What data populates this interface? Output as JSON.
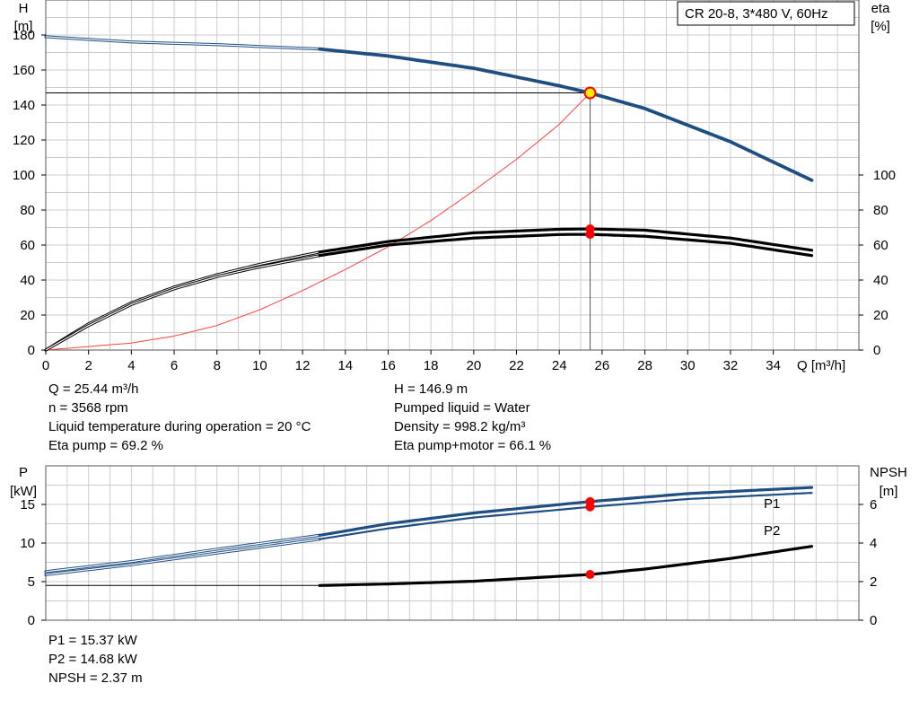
{
  "legend_box": "CR 20-8, 3*480 V, 60Hz",
  "axes": {
    "h_unit_line1": "H",
    "h_unit_line2": "[m]",
    "eta_unit_line1": "eta",
    "eta_unit_line2": "[%]",
    "q_label": "Q [m³/h]",
    "p_unit_line1": "P",
    "p_unit_line2": "[kW]",
    "npsh_unit_line1": "NPSH",
    "npsh_unit_line2": "[m]"
  },
  "info_top_left": [
    "Q = 25.44 m³/h",
    "n = 3568 rpm",
    "Liquid temperature during operation = 20 °C",
    "Eta pump = 69.2 %"
  ],
  "info_top_right": [
    "H = 146.9 m",
    "Pumped liquid = Water",
    "Density = 998.2 kg/m³",
    "Eta pump+motor = 66.1 %"
  ],
  "info_bottom": [
    "P1 = 15.37 kW",
    "P2 = 14.68 kW",
    "NPSH = 2.37 m"
  ],
  "colors": {
    "head": "#1f4e82",
    "power": "#1f4e82",
    "efficiency": "#000000",
    "system": "#ff4040",
    "marker": "#ff0000",
    "duty_point": "#ffee00",
    "grid": "#cccccc"
  },
  "chart_data": [
    {
      "type": "line",
      "x_ticks": [
        0,
        2,
        4,
        6,
        8,
        10,
        12,
        14,
        16,
        18,
        20,
        22,
        24,
        26,
        28,
        30,
        32,
        34
      ],
      "xlim": [
        0,
        38
      ],
      "ylim": [
        0,
        200
      ],
      "y_ticks": [
        0,
        20,
        40,
        60,
        80,
        100,
        120,
        140,
        160,
        180
      ],
      "y2_ticks": [
        0,
        20,
        40,
        60,
        80,
        100
      ],
      "xlabel": "Q [m³/h]",
      "ylabel": "H [m]",
      "y2label": "eta [%]",
      "grid": true,
      "duty_point": {
        "Q": 25.44,
        "H": 146.9,
        "eta_pump": 69.2,
        "eta_total": 66.1
      },
      "series": [
        {
          "key": "head",
          "x": [
            0,
            4,
            8,
            12.8,
            16,
            20,
            24,
            25.44,
            28,
            32,
            35.8
          ],
          "y": [
            179,
            176,
            174.5,
            172,
            168,
            161,
            151,
            146.9,
            138,
            119,
            97
          ]
        },
        {
          "key": "eta_pump",
          "x": [
            0,
            2,
            4,
            6,
            8,
            10,
            12.8,
            16,
            20,
            24,
            25.44,
            28,
            32,
            35.8
          ],
          "y": [
            0,
            15,
            27,
            36,
            43,
            49,
            56,
            62,
            67,
            69,
            69.2,
            68.5,
            64,
            57
          ]
        },
        {
          "key": "eta_total",
          "x": [
            0,
            2,
            4,
            6,
            8,
            10,
            12.8,
            16,
            20,
            24,
            25.44,
            28,
            32,
            35.8
          ],
          "y": [
            0,
            14,
            26,
            35,
            42,
            47.5,
            54,
            60,
            64,
            66,
            66.1,
            65,
            61,
            54
          ]
        },
        {
          "key": "system",
          "x": [
            0,
            4,
            6,
            8,
            10,
            12,
            14,
            16,
            18,
            20,
            22,
            24,
            25.44
          ],
          "y": [
            0,
            4,
            8,
            14,
            23,
            34,
            46,
            59,
            74,
            91,
            109,
            129,
            146.9
          ]
        }
      ]
    },
    {
      "type": "line",
      "x_ticks": [
        0,
        2,
        4,
        6,
        8,
        10,
        12,
        14,
        16,
        18,
        20,
        22,
        24,
        26,
        28,
        30,
        32,
        34
      ],
      "xlim": [
        0,
        38
      ],
      "ylim": [
        0,
        20
      ],
      "y_ticks": [
        0,
        5,
        10,
        15
      ],
      "y2lim": [
        0,
        8
      ],
      "y2_ticks": [
        0,
        2,
        4,
        6
      ],
      "ylabel": "P [kW]",
      "y2label": "NPSH [m]",
      "grid": true,
      "duty_point": {
        "Q": 25.44,
        "P1": 15.37,
        "P2": 14.68,
        "NPSH": 2.37
      },
      "series": [
        {
          "name": "P1",
          "x": [
            0,
            4,
            8,
            12.8,
            16,
            20,
            25.44,
            30,
            35.8
          ],
          "y": [
            6.3,
            7.6,
            9.2,
            11.0,
            12.5,
            13.9,
            15.37,
            16.4,
            17.2
          ]
        },
        {
          "name": "P2",
          "x": [
            0,
            4,
            8,
            12.8,
            16,
            20,
            25.44,
            30,
            35.8
          ],
          "y": [
            5.9,
            7.2,
            8.7,
            10.5,
            11.9,
            13.3,
            14.68,
            15.7,
            16.5
          ]
        },
        {
          "key": "npsh",
          "x": [
            0,
            12.8,
            16,
            20,
            25.44,
            28,
            32,
            35.8
          ],
          "y": [
            1.8,
            1.8,
            1.88,
            2.02,
            2.37,
            2.65,
            3.2,
            3.83
          ]
        }
      ]
    }
  ]
}
